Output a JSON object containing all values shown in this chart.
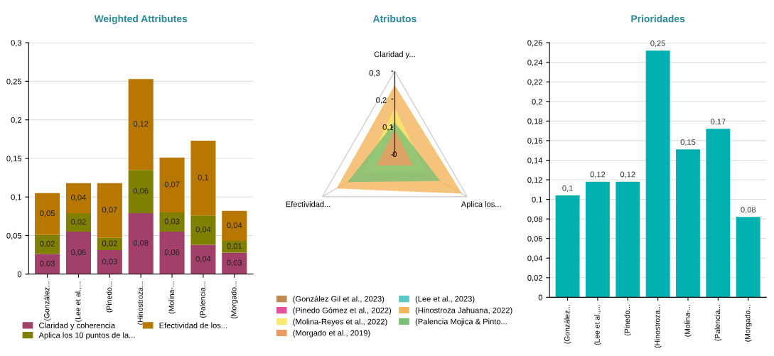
{
  "chart_data": [
    {
      "type": "bar",
      "title": "Weighted Attributes",
      "stacked": true,
      "legend": "bottom",
      "grid": "y",
      "categories": [
        "(González...",
        "(Lee et al.,...",
        "(Pinedo...",
        "(Hinostroza...",
        "(Molina-...",
        "(Palencia...",
        "(Morgado..."
      ],
      "ylim": [
        0,
        0.3
      ],
      "yticks": [
        0,
        {
          "value": 0.05,
          "label": "0,05"
        },
        {
          "value": 0.1,
          "label": "0,1"
        },
        {
          "value": 0.15,
          "label": "0,15"
        },
        {
          "value": 0.2,
          "label": "0,2"
        },
        {
          "value": 0.25,
          "label": "0,25"
        },
        {
          "value": 0.3,
          "label": "0,3"
        }
      ],
      "series": [
        {
          "name": "Claridad y coherencia",
          "color": "#a3406a",
          "values": [
            0.026,
            0.055,
            0.031,
            0.079,
            0.055,
            0.038,
            0.028
          ],
          "value_labels": [
            "0,03",
            "0,06",
            "0,03",
            "0,08",
            "0,06",
            "0,04",
            "0,03"
          ]
        },
        {
          "name": "Aplica los 10 puntos de la...",
          "color": "#7f7f00",
          "values": [
            0.025,
            0.024,
            0.016,
            0.056,
            0.025,
            0.038,
            0.015
          ],
          "value_labels": [
            "0,02",
            "0,02",
            "0,02",
            "0,06",
            "0,03",
            "0,04",
            "0,01"
          ]
        },
        {
          "name": "Efectividad de los...",
          "color": "#b87800",
          "values": [
            0.054,
            0.039,
            0.071,
            0.118,
            0.071,
            0.097,
            0.039
          ],
          "value_labels": [
            "0,05",
            "0,04",
            "0,07",
            "0,12",
            "0,07",
            "0,1",
            "0,04"
          ]
        }
      ]
    },
    {
      "type": "radar",
      "title": "Atributos",
      "legend": "bottom",
      "categories": [
        "Claridad y...",
        "Aplica los...",
        "Efectividad..."
      ],
      "ylim": [
        0,
        0.3
      ],
      "yticks": [
        0,
        {
          "value": 0.1,
          "label": "0,1"
        },
        {
          "value": 0.2,
          "label": "0,2"
        },
        {
          "value": 0.3,
          "label": "0,3"
        }
      ],
      "series": [
        {
          "name": "(González Gil et al., 2023)",
          "color": "#c08a54",
          "values": [
            0.096,
            0.073,
            0.08
          ]
        },
        {
          "name": "(Lee et al., 2023)",
          "color": "#5bc8c8",
          "values": [
            0.09,
            0.07,
            0.075
          ]
        },
        {
          "name": "(Pinedo Gómez et al., 2022)",
          "color": "#e6529f",
          "values": [
            0.085,
            0.07,
            0.07
          ]
        },
        {
          "name": "(Hinostroza Jahuana, 2022)",
          "color": "#f3b45a",
          "values": [
            0.25,
            0.278,
            0.241
          ]
        },
        {
          "name": "(Molina-Reyes et al., 2022)",
          "color": "#fbe96d",
          "values": [
            0.168,
            0.13,
            0.13
          ]
        },
        {
          "name": "(Palencia Mojica & Pinto...",
          "color": "#7cbf75",
          "values": [
            0.117,
            0.188,
            0.195
          ]
        },
        {
          "name": "(Morgado et al., 2019)",
          "color": "#ed9a62",
          "values": [
            0.09,
            0.075,
            0.075
          ]
        }
      ]
    },
    {
      "type": "bar",
      "title": "Prioridades",
      "grid": "y",
      "categories": [
        "(González...",
        "(Lee et al.,...",
        "(Pinedo...",
        "(Hinostroza...",
        "(Molina-...",
        "(Palencia...",
        "(Morgado..."
      ],
      "ylim": [
        0,
        0.26
      ],
      "yticks": [
        0,
        {
          "value": 0.02,
          "label": "0,02"
        },
        {
          "value": 0.04,
          "label": "0,04"
        },
        {
          "value": 0.06,
          "label": "0,06"
        },
        {
          "value": 0.08,
          "label": "0,08"
        },
        {
          "value": 0.1,
          "label": "0,1"
        },
        {
          "value": 0.12,
          "label": "0,12"
        },
        {
          "value": 0.14,
          "label": "0,14"
        },
        {
          "value": 0.16,
          "label": "0,16"
        },
        {
          "value": 0.18,
          "label": "0,18"
        },
        {
          "value": 0.2,
          "label": "0,2"
        },
        {
          "value": 0.22,
          "label": "0,22"
        },
        {
          "value": 0.24,
          "label": "0,24"
        },
        {
          "value": 0.26,
          "label": "0,26"
        }
      ],
      "series": [
        {
          "color": "#00afb0",
          "values": [
            0.104,
            0.118,
            0.118,
            0.252,
            0.151,
            0.172,
            0.082
          ],
          "value_labels": [
            "0,1",
            "0,12",
            "0,12",
            "0,25",
            "0,15",
            "0,17",
            "0,08"
          ]
        }
      ]
    }
  ]
}
